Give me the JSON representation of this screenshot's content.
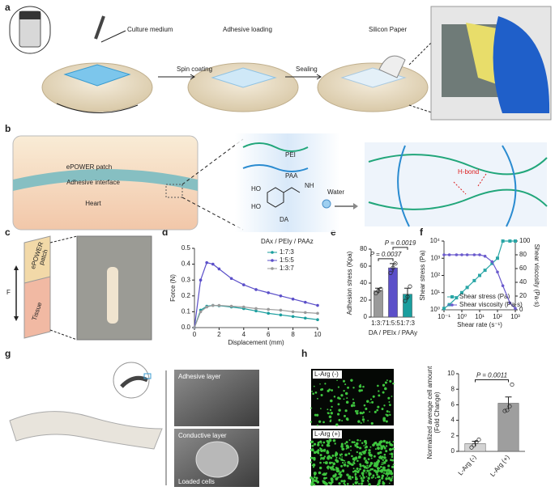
{
  "figure": {
    "labels": [
      "a",
      "b",
      "c",
      "d",
      "e",
      "f",
      "g",
      "h"
    ],
    "a": {
      "culture_medium": "Culture medium",
      "spin_coating": "Spin coating",
      "adhesive_loading": "Adhesive loading",
      "sealing": "Sealing",
      "silicon_paper": "Silicon Paper"
    },
    "b": {
      "patch": "ePOWER patch",
      "interface": "Adhesive interface",
      "heart": "Heart",
      "pei": "PEI",
      "paa": "PAA",
      "ho1": "HO",
      "ho2": "HO",
      "nh": "NH",
      "da": "DA",
      "water": "Water",
      "hbond": "H-bond"
    },
    "c": {
      "epower": "ePOWER",
      "patch": "patch",
      "tissue": "Tissue",
      "force": "F"
    },
    "g": {
      "adhesive": "Adhesive layer",
      "conductive": "Conductive layer",
      "cells": "Loaded cells"
    },
    "h": {
      "minus": "L-Arg (-)",
      "plus": "L-Arg (+)"
    }
  },
  "chart_data": [
    {
      "type": "line",
      "xlabel": "Displacement (mm)",
      "ylabel": "Force (N)",
      "legend_title": "DAx / PEIy / PAAz",
      "legend": "upper right",
      "x": [
        0,
        0.5,
        1,
        1.5,
        2,
        3,
        4,
        5,
        6,
        7,
        8,
        9,
        10
      ],
      "xlim": [
        0,
        10
      ],
      "xticks": [
        0,
        2,
        4,
        6,
        8,
        10
      ],
      "ylim": [
        0,
        0.5
      ],
      "yticks": [
        {
          "value": 0,
          "label": "0.0"
        },
        0.1,
        0.2,
        0.3,
        0.4,
        0.5
      ],
      "series": [
        {
          "name": "1:7:3",
          "color": "#1a9e9e",
          "marker": "circle",
          "values": [
            0,
            0.11,
            0.135,
            0.14,
            0.138,
            0.13,
            0.12,
            0.105,
            0.09,
            0.08,
            0.07,
            0.06,
            0.05
          ]
        },
        {
          "name": "1:5:5",
          "color": "#5b4fc9",
          "marker": "circle",
          "values": [
            0,
            0.3,
            0.41,
            0.4,
            0.37,
            0.31,
            0.27,
            0.24,
            0.22,
            0.2,
            0.18,
            0.16,
            0.14
          ]
        },
        {
          "name": "1:3:7",
          "color": "#9a9a9a",
          "marker": "circle",
          "values": [
            0,
            0.1,
            0.13,
            0.14,
            0.14,
            0.135,
            0.13,
            0.12,
            0.115,
            0.11,
            0.1,
            0.095,
            0.09
          ]
        }
      ]
    },
    {
      "type": "bar",
      "xlabel": "DA / PEIx / PAAy",
      "ylabel": "Adhesion stress (Kpa)",
      "categories": [
        "1:3:7",
        "1:5:5",
        "1:7:3"
      ],
      "values": [
        31,
        58,
        27
      ],
      "errors": [
        3,
        5,
        7
      ],
      "points": [
        [
          28,
          31,
          33
        ],
        [
          52,
          58,
          63
        ],
        [
          19,
          24,
          36
        ]
      ],
      "colors": [
        "#9a9a9a",
        "#5b4fc9",
        "#1a9e9e"
      ],
      "ylim": [
        0,
        80
      ],
      "yticks": [
        0,
        20,
        40,
        60,
        80
      ],
      "annotations": [
        "P = 0.0037",
        "P = 0.0019"
      ]
    },
    {
      "type": "line",
      "xlabel": "Shear rate (s⁻¹)",
      "ylabel": "Shear stress (Pa)",
      "y2label": "Shear viscosity (Pa·s)",
      "legend": "lower left",
      "xlog": true,
      "ylog": true,
      "x": [
        0.1,
        0.2,
        0.5,
        1,
        2,
        5,
        10,
        20,
        50,
        100,
        200,
        500,
        1000
      ],
      "xlim": [
        0.1,
        1000
      ],
      "xticks": [
        {
          "value": 0.1,
          "label": "10⁻¹"
        },
        {
          "value": 1,
          "label": "10⁰"
        },
        {
          "value": 10,
          "label": "10¹"
        },
        {
          "value": 100,
          "label": "10²"
        },
        {
          "value": 1000,
          "label": "10³"
        }
      ],
      "ylim": [
        1,
        10000
      ],
      "yticks": [
        {
          "value": 1,
          "label": "10⁰"
        },
        {
          "value": 10,
          "label": "10¹"
        },
        {
          "value": 100,
          "label": "10²"
        },
        {
          "value": 1000,
          "label": "10³"
        },
        {
          "value": 10000,
          "label": "10⁴"
        }
      ],
      "y2lim": [
        0,
        100
      ],
      "y2ticks": [
        0,
        20,
        40,
        60,
        80,
        100
      ],
      "series": [
        {
          "name": "Shear stress (Pa)",
          "color": "#2aa6a6",
          "marker": "square",
          "values": [
            1.2,
            2,
            5,
            10,
            20,
            50,
            100,
            200,
            500,
            1000,
            10000,
            10000,
            10000
          ]
        },
        {
          "name": "Shear viscosity (Pa·s)",
          "color": "#6a5acd",
          "marker": "circle",
          "axis": "y2",
          "values": [
            80,
            80,
            80,
            80,
            80,
            80,
            80,
            78,
            70,
            55,
            35,
            10,
            2
          ]
        }
      ]
    },
    {
      "type": "bar",
      "ylabel": [
        "Normalized average cell amount",
        "(Fold Change)"
      ],
      "categories": [
        "L-Arg (-)",
        "L-Arg (+)"
      ],
      "values": [
        1.0,
        6.2
      ],
      "errors": [
        0.3,
        0.8
      ],
      "points": [
        [
          0.5,
          0.8,
          1.2,
          1.5
        ],
        [
          5.2,
          5.3,
          5.8,
          8.6
        ]
      ],
      "colors": [
        "#d3d3d3",
        "#9e9e9e"
      ],
      "ylim": [
        0,
        10
      ],
      "yticks": [
        0,
        2,
        4,
        6,
        8,
        10
      ],
      "annotations": [
        "P = 0.0011"
      ],
      "rotate_labels": true
    }
  ]
}
